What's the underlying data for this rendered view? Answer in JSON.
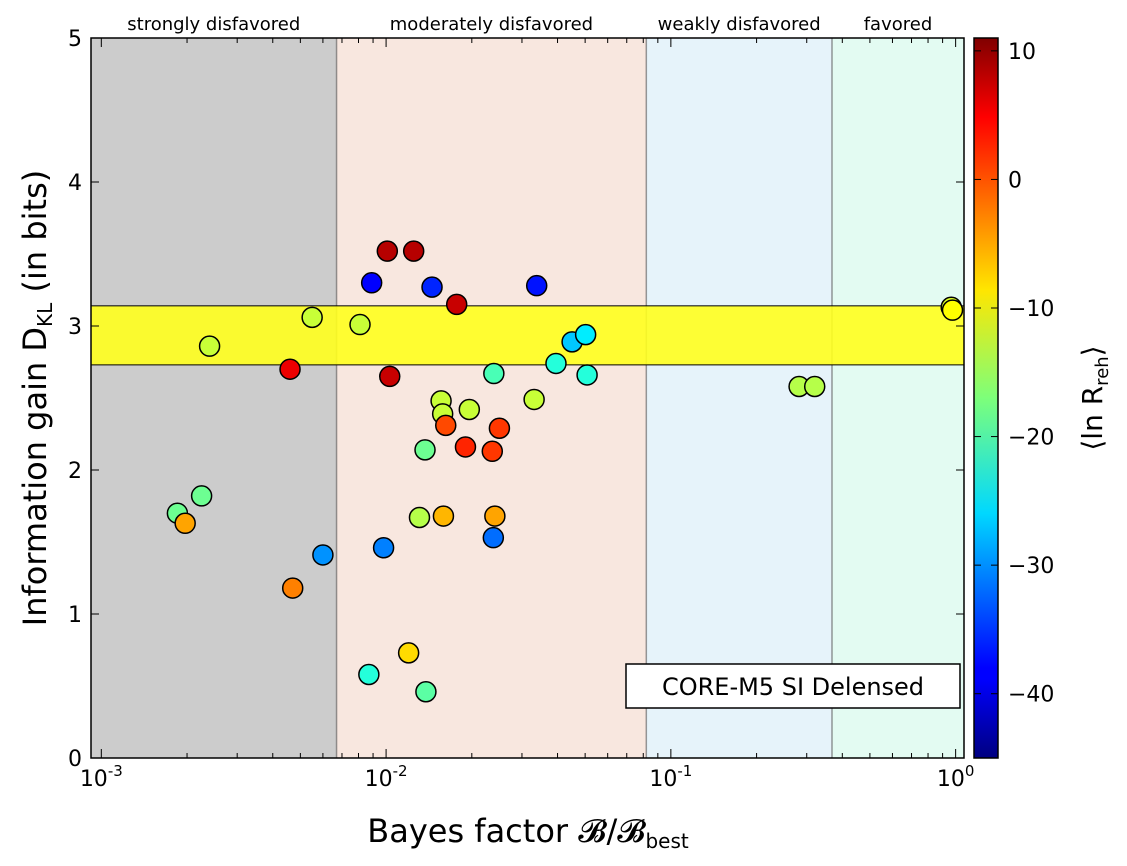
{
  "chart_data": {
    "type": "scatter",
    "xlabel": "Bayes factor 𝓑/𝓑",
    "xlabel_sub": "best",
    "ylabel": "Information gain D",
    "ylabel_sub": "KL",
    "ylabel_unit": " (in bits)",
    "x_scale": "log",
    "xlim": [
      0.00092,
      1.07
    ],
    "ylim": [
      0,
      5
    ],
    "x_ticks": [
      {
        "value": 0.001,
        "base": "10",
        "exp": "-3"
      },
      {
        "value": 0.01,
        "base": "10",
        "exp": "-2"
      },
      {
        "value": 0.1,
        "base": "10",
        "exp": "-1"
      },
      {
        "value": 1,
        "base": "10",
        "exp": "0"
      }
    ],
    "y_ticks": [
      {
        "value": 0,
        "label": "0"
      },
      {
        "value": 1,
        "label": "1"
      },
      {
        "value": 2,
        "label": "2"
      },
      {
        "value": 3,
        "label": "3"
      },
      {
        "value": 4,
        "label": "4"
      },
      {
        "value": 5,
        "label": "5"
      }
    ],
    "regions": [
      {
        "label": "strongly disfavored",
        "from": 0.00092,
        "to": 0.0067,
        "color": "#cccccc"
      },
      {
        "label": "moderately disfavored",
        "from": 0.0067,
        "to": 0.082,
        "color": "#f8e7df"
      },
      {
        "label": "weakly disfavored",
        "from": 0.082,
        "to": 0.368,
        "color": "#e6f3fa"
      },
      {
        "label": "favored",
        "from": 0.368,
        "to": 1.07,
        "color": "#e3fbf2"
      }
    ],
    "band": {
      "y_from": 2.73,
      "y_to": 3.14,
      "color": "#ffff1e"
    },
    "legend_text": "CORE-M5 SI Delensed",
    "colorbar": {
      "label": "⟨ln R",
      "label_sub": "reh",
      "label_end": "⟩",
      "min": -45,
      "max": 11,
      "ticks": [
        {
          "value": 10,
          "label": "10"
        },
        {
          "value": 0,
          "label": "0"
        },
        {
          "value": -10,
          "label": "−10"
        },
        {
          "value": -20,
          "label": "−20"
        },
        {
          "value": -30,
          "label": "−30"
        },
        {
          "value": -40,
          "label": "−40"
        }
      ]
    },
    "points": [
      {
        "x": 0.00185,
        "y": 1.7,
        "c": -18
      },
      {
        "x": 0.00197,
        "y": 1.63,
        "c": -5
      },
      {
        "x": 0.00225,
        "y": 1.82,
        "c": -18
      },
      {
        "x": 0.0024,
        "y": 2.86,
        "c": -13
      },
      {
        "x": 0.0046,
        "y": 2.7,
        "c": 5
      },
      {
        "x": 0.0047,
        "y": 1.18,
        "c": -3
      },
      {
        "x": 0.0055,
        "y": 3.06,
        "c": -13
      },
      {
        "x": 0.006,
        "y": 1.41,
        "c": -30
      },
      {
        "x": 0.0081,
        "y": 3.01,
        "c": -13
      },
      {
        "x": 0.0087,
        "y": 0.58,
        "c": -22
      },
      {
        "x": 0.0089,
        "y": 3.3,
        "c": -38
      },
      {
        "x": 0.0098,
        "y": 1.46,
        "c": -31
      },
      {
        "x": 0.0101,
        "y": 3.52,
        "c": 8
      },
      {
        "x": 0.0103,
        "y": 2.65,
        "c": 7
      },
      {
        "x": 0.012,
        "y": 0.73,
        "c": -8
      },
      {
        "x": 0.0125,
        "y": 3.52,
        "c": 8
      },
      {
        "x": 0.0131,
        "y": 1.67,
        "c": -14
      },
      {
        "x": 0.0137,
        "y": 2.14,
        "c": -18
      },
      {
        "x": 0.0138,
        "y": 0.46,
        "c": -19
      },
      {
        "x": 0.0145,
        "y": 3.27,
        "c": -36
      },
      {
        "x": 0.0156,
        "y": 2.48,
        "c": -13
      },
      {
        "x": 0.0158,
        "y": 2.39,
        "c": -13
      },
      {
        "x": 0.0159,
        "y": 1.68,
        "c": -6
      },
      {
        "x": 0.0162,
        "y": 2.31,
        "c": 0
      },
      {
        "x": 0.0177,
        "y": 3.15,
        "c": 7
      },
      {
        "x": 0.019,
        "y": 2.16,
        "c": 2
      },
      {
        "x": 0.0196,
        "y": 2.42,
        "c": -13
      },
      {
        "x": 0.0236,
        "y": 2.13,
        "c": 1
      },
      {
        "x": 0.0238,
        "y": 1.53,
        "c": -32
      },
      {
        "x": 0.0239,
        "y": 2.67,
        "c": -20
      },
      {
        "x": 0.0241,
        "y": 1.68,
        "c": -5
      },
      {
        "x": 0.025,
        "y": 2.29,
        "c": 1
      },
      {
        "x": 0.0331,
        "y": 2.49,
        "c": -13
      },
      {
        "x": 0.0338,
        "y": 3.28,
        "c": -37
      },
      {
        "x": 0.0395,
        "y": 2.74,
        "c": -22
      },
      {
        "x": 0.045,
        "y": 2.89,
        "c": -27
      },
      {
        "x": 0.0502,
        "y": 2.94,
        "c": -25
      },
      {
        "x": 0.0508,
        "y": 2.66,
        "c": -22
      },
      {
        "x": 0.282,
        "y": 2.58,
        "c": -14
      },
      {
        "x": 0.32,
        "y": 2.58,
        "c": -14
      },
      {
        "x": 0.965,
        "y": 3.13,
        "c": -12
      },
      {
        "x": 0.975,
        "y": 3.11,
        "c": -10
      }
    ]
  }
}
